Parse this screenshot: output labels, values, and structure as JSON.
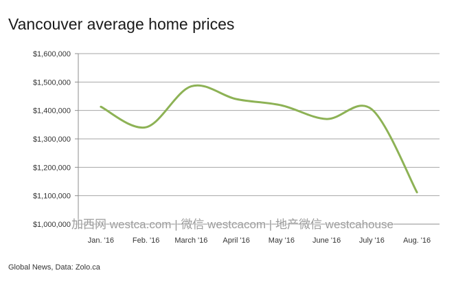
{
  "chart_data": {
    "type": "line",
    "title": "Vancouver average home prices",
    "xlabel": "",
    "ylabel": "",
    "categories": [
      "Jan. '16",
      "Feb. '16",
      "March '16",
      "April '16",
      "May '16",
      "June '16",
      "July '16",
      "Aug. '16"
    ],
    "series": [
      {
        "values": [
          1413000,
          1341000,
          1485000,
          1440000,
          1418000,
          1370000,
          1404000,
          1112000
        ],
        "color": "#8db255"
      }
    ],
    "ylim": [
      1000000,
      1600000
    ],
    "yticks": [
      1000000,
      1100000,
      1200000,
      1300000,
      1400000,
      1500000,
      1600000
    ],
    "ytick_labels": [
      "$1,000,000",
      "$1,100,000",
      "$1,200,000",
      "$1,300,000",
      "$1,400,000",
      "$1,500,000",
      "$1,600,000"
    ],
    "grid": "horizontal",
    "legend": "none"
  },
  "watermark": "加西网 westca.com | 微信 westcacom | 地产微信 westcahouse",
  "source": "Global News, Data: Zolo.ca"
}
